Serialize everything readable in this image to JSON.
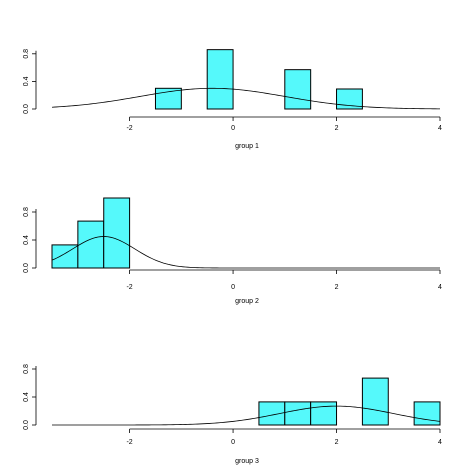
{
  "chart_data": [
    {
      "type": "bar",
      "subtype": "histogram-with-density",
      "title": "",
      "xlabel": "group 1",
      "ylabel": "",
      "xlim": [
        -3.5,
        4
      ],
      "ylim": [
        0,
        1
      ],
      "x_ticks": [
        "-2",
        "0",
        "2",
        "4"
      ],
      "y_ticks": [
        "0.0",
        "0.4",
        "0.8"
      ],
      "bar_color": "#55f9fb",
      "bins": [
        {
          "x0": -1.5,
          "x1": -1.0,
          "value": 0.3
        },
        {
          "x0": -0.5,
          "x1": 0.0,
          "value": 0.86
        },
        {
          "x0": 1.0,
          "x1": 1.5,
          "value": 0.57
        },
        {
          "x0": 2.0,
          "x1": 2.5,
          "value": 0.29
        }
      ],
      "density": {
        "mean": -0.4,
        "sd": 1.4,
        "peak": 0.3
      }
    },
    {
      "type": "bar",
      "subtype": "histogram-with-density",
      "title": "",
      "xlabel": "group 2",
      "ylabel": "",
      "xlim": [
        -3.5,
        4
      ],
      "ylim": [
        0,
        1
      ],
      "x_ticks": [
        "-2",
        "0",
        "2",
        "4"
      ],
      "y_ticks": [
        "0.0",
        "0.4",
        "0.8"
      ],
      "bar_color": "#55f9fb",
      "bins": [
        {
          "x0": -3.5,
          "x1": -3.0,
          "value": 0.33
        },
        {
          "x0": -3.0,
          "x1": -2.5,
          "value": 0.67
        },
        {
          "x0": -2.5,
          "x1": -2.0,
          "value": 1.0
        }
      ],
      "density": {
        "mean": -2.5,
        "sd": 0.6,
        "peak": 0.45
      }
    },
    {
      "type": "bar",
      "subtype": "histogram-with-density",
      "title": "",
      "xlabel": "group 3",
      "ylabel": "",
      "xlim": [
        -3.5,
        4
      ],
      "ylim": [
        0,
        1
      ],
      "x_ticks": [
        "-2",
        "0",
        "2",
        "4"
      ],
      "y_ticks": [
        "0.0",
        "0.4",
        "0.8"
      ],
      "bar_color": "#55f9fb",
      "bins": [
        {
          "x0": 0.5,
          "x1": 1.0,
          "value": 0.33
        },
        {
          "x0": 1.0,
          "x1": 1.5,
          "value": 0.33
        },
        {
          "x0": 1.5,
          "x1": 2.0,
          "value": 0.33
        },
        {
          "x0": 2.5,
          "x1": 3.0,
          "value": 0.67
        },
        {
          "x0": 3.5,
          "x1": 4.0,
          "value": 0.33
        }
      ],
      "density": {
        "mean": 2.0,
        "sd": 1.1,
        "peak": 0.27
      }
    }
  ]
}
